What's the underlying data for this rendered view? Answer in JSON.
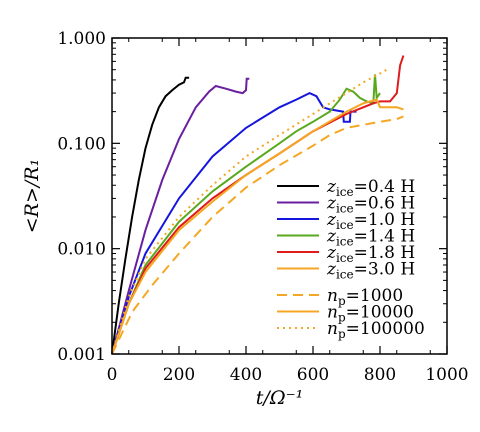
{
  "chart_data": {
    "type": "line",
    "title": "",
    "xlabel": "t/Ω⁻¹",
    "ylabel": "<R>/R₁",
    "xlim": [
      0,
      1000
    ],
    "ylim": [
      0.001,
      1.0
    ],
    "yscale": "log",
    "grid": false,
    "legend_placement": "lower-right",
    "x_ticks": [
      0,
      200,
      400,
      600,
      800,
      1000
    ],
    "x_tick_labels": [
      "0",
      "200",
      "400",
      "600",
      "800",
      "1000"
    ],
    "y_ticks": [
      0.001,
      0.01,
      0.1,
      1.0
    ],
    "y_tick_labels": [
      "0.001",
      "0.010",
      "0.100",
      "1.000"
    ],
    "series": [
      {
        "name": "zice=0.4 H",
        "label_main": "z",
        "label_sub": "ice",
        "label_rest": "=0.4 H",
        "color": "#000000",
        "dash": "solid",
        "points": [
          [
            0,
            0.001
          ],
          [
            20,
            0.003
          ],
          [
            40,
            0.008
          ],
          [
            60,
            0.02
          ],
          [
            80,
            0.045
          ],
          [
            100,
            0.09
          ],
          [
            120,
            0.15
          ],
          [
            140,
            0.22
          ],
          [
            160,
            0.28
          ],
          [
            180,
            0.32
          ],
          [
            200,
            0.36
          ],
          [
            215,
            0.38
          ],
          [
            220,
            0.42
          ],
          [
            230,
            0.42
          ]
        ]
      },
      {
        "name": "zice=0.6 H",
        "label_main": "z",
        "label_sub": "ice",
        "label_rest": "=0.6 H",
        "color": "#6a1fa0",
        "dash": "solid",
        "points": [
          [
            0,
            0.001
          ],
          [
            50,
            0.004
          ],
          [
            100,
            0.015
          ],
          [
            150,
            0.045
          ],
          [
            200,
            0.11
          ],
          [
            250,
            0.22
          ],
          [
            290,
            0.31
          ],
          [
            310,
            0.35
          ],
          [
            340,
            0.33
          ],
          [
            370,
            0.31
          ],
          [
            390,
            0.3
          ],
          [
            400,
            0.32
          ],
          [
            402,
            0.41
          ],
          [
            410,
            0.41
          ]
        ]
      },
      {
        "name": "zice=1.0 H",
        "label_main": "z",
        "label_sub": "ice",
        "label_rest": "=1.0 H",
        "color": "#1515e0",
        "dash": "solid",
        "points": [
          [
            0,
            0.001
          ],
          [
            50,
            0.0035
          ],
          [
            100,
            0.009
          ],
          [
            200,
            0.03
          ],
          [
            300,
            0.075
          ],
          [
            400,
            0.14
          ],
          [
            500,
            0.22
          ],
          [
            550,
            0.26
          ],
          [
            590,
            0.3
          ],
          [
            610,
            0.28
          ],
          [
            630,
            0.22
          ],
          [
            650,
            0.21
          ],
          [
            690,
            0.2
          ],
          [
            692,
            0.16
          ],
          [
            710,
            0.16
          ],
          [
            712,
            0.2
          ],
          [
            730,
            0.2
          ]
        ]
      },
      {
        "name": "zice=1.4 H",
        "label_main": "z",
        "label_sub": "ice",
        "label_rest": "=1.4 H",
        "color": "#5aa81e",
        "dash": "solid",
        "points": [
          [
            0,
            0.001
          ],
          [
            50,
            0.003
          ],
          [
            100,
            0.007
          ],
          [
            200,
            0.018
          ],
          [
            300,
            0.035
          ],
          [
            400,
            0.06
          ],
          [
            500,
            0.1
          ],
          [
            550,
            0.13
          ],
          [
            600,
            0.16
          ],
          [
            650,
            0.2
          ],
          [
            680,
            0.26
          ],
          [
            700,
            0.33
          ],
          [
            720,
            0.31
          ],
          [
            740,
            0.27
          ],
          [
            760,
            0.25
          ],
          [
            780,
            0.24
          ],
          [
            785,
            0.45
          ],
          [
            790,
            0.27
          ],
          [
            800,
            0.3
          ]
        ]
      },
      {
        "name": "zice=1.8 H",
        "label_main": "z",
        "label_sub": "ice",
        "label_rest": "=1.8 H",
        "color": "#e01b1b",
        "dash": "solid",
        "points": [
          [
            0,
            0.001
          ],
          [
            50,
            0.003
          ],
          [
            100,
            0.0065
          ],
          [
            200,
            0.016
          ],
          [
            300,
            0.03
          ],
          [
            400,
            0.05
          ],
          [
            500,
            0.08
          ],
          [
            600,
            0.13
          ],
          [
            700,
            0.19
          ],
          [
            750,
            0.22
          ],
          [
            780,
            0.24
          ],
          [
            800,
            0.25
          ],
          [
            830,
            0.25
          ],
          [
            850,
            0.3
          ],
          [
            860,
            0.55
          ],
          [
            870,
            0.68
          ]
        ]
      },
      {
        "name": "zice=3.0 H",
        "label_main": "z",
        "label_sub": "ice",
        "label_rest": "=3.0 H",
        "color": "#f5a623",
        "dash": "solid",
        "points": [
          [
            0,
            0.001
          ],
          [
            50,
            0.003
          ],
          [
            100,
            0.006
          ],
          [
            200,
            0.015
          ],
          [
            300,
            0.028
          ],
          [
            400,
            0.05
          ],
          [
            500,
            0.08
          ],
          [
            600,
            0.13
          ],
          [
            700,
            0.2
          ],
          [
            750,
            0.24
          ],
          [
            790,
            0.26
          ],
          [
            800,
            0.22
          ],
          [
            850,
            0.22
          ],
          [
            870,
            0.21
          ]
        ]
      },
      {
        "name": "np=1000",
        "label_main": "n",
        "label_sub": "p",
        "label_rest": "=1000",
        "color": "#f5a623",
        "dash": "long",
        "points": [
          [
            0,
            0.001
          ],
          [
            60,
            0.0025
          ],
          [
            120,
            0.0045
          ],
          [
            200,
            0.009
          ],
          [
            300,
            0.02
          ],
          [
            400,
            0.038
          ],
          [
            500,
            0.062
          ],
          [
            600,
            0.095
          ],
          [
            650,
            0.12
          ],
          [
            700,
            0.14
          ],
          [
            750,
            0.15
          ],
          [
            800,
            0.16
          ],
          [
            850,
            0.17
          ],
          [
            870,
            0.18
          ]
        ]
      },
      {
        "name": "np=10000",
        "label_main": "n",
        "label_sub": "p",
        "label_rest": "=10000",
        "color": "#f5a623",
        "dash": "solid",
        "points": []
      },
      {
        "name": "np=100000",
        "label_main": "n",
        "label_sub": "p",
        "label_rest": "=100000",
        "color": "#f5a623",
        "dash": "dot",
        "points": [
          [
            0,
            0.001
          ],
          [
            50,
            0.0035
          ],
          [
            100,
            0.008
          ],
          [
            200,
            0.02
          ],
          [
            300,
            0.04
          ],
          [
            400,
            0.075
          ],
          [
            500,
            0.12
          ],
          [
            600,
            0.19
          ],
          [
            650,
            0.24
          ],
          [
            700,
            0.3
          ],
          [
            750,
            0.38
          ],
          [
            800,
            0.46
          ],
          [
            820,
            0.5
          ]
        ]
      }
    ]
  }
}
